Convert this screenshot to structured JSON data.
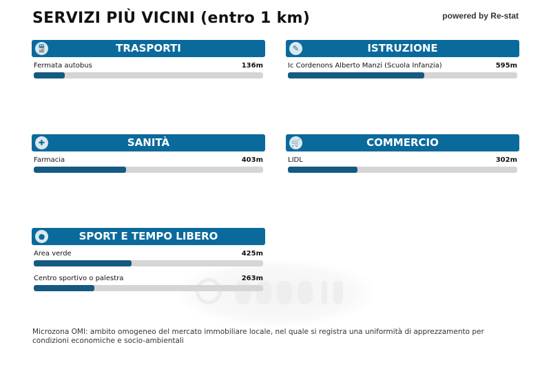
{
  "title": "SERVIZI PIÙ VICINI (entro 1 km)",
  "powered": "powered by Re-stat",
  "watermark": "casa.it",
  "sections": [
    {
      "title": "TRASPORTI",
      "icon": "train-icon",
      "items": [
        {
          "label": "Fermata autobus",
          "distance": "136m",
          "fraction": 0.136
        }
      ]
    },
    {
      "title": "ISTRUZIONE",
      "icon": "school-icon",
      "items": [
        {
          "label": "Ic Cordenons Alberto Manzi (Scuola Infanzia)",
          "distance": "595m",
          "fraction": 0.595
        }
      ]
    },
    {
      "title": "SANITÀ",
      "icon": "hospital-icon",
      "items": [
        {
          "label": "Farmacia",
          "distance": "403m",
          "fraction": 0.403
        }
      ]
    },
    {
      "title": "COMMERCIO",
      "icon": "cart-icon",
      "items": [
        {
          "label": "LIDL",
          "distance": "302m",
          "fraction": 0.302
        }
      ]
    },
    {
      "title": "SPORT E TEMPO LIBERO",
      "icon": "tennis-icon",
      "items": [
        {
          "label": "Area verde",
          "distance": "425m",
          "fraction": 0.425
        },
        {
          "label": "Centro sportivo o palestra",
          "distance": "263m",
          "fraction": 0.263
        }
      ]
    }
  ],
  "note": "Microzona OMI: ambito omogeneo del mercato immobiliare locale, nel quale si registra una uniformità di apprezzamento per condizioni economiche e socio-ambientali",
  "colors": {
    "header": "#0a6a9c",
    "fill": "#155a80",
    "track": "#d5d5d5"
  }
}
